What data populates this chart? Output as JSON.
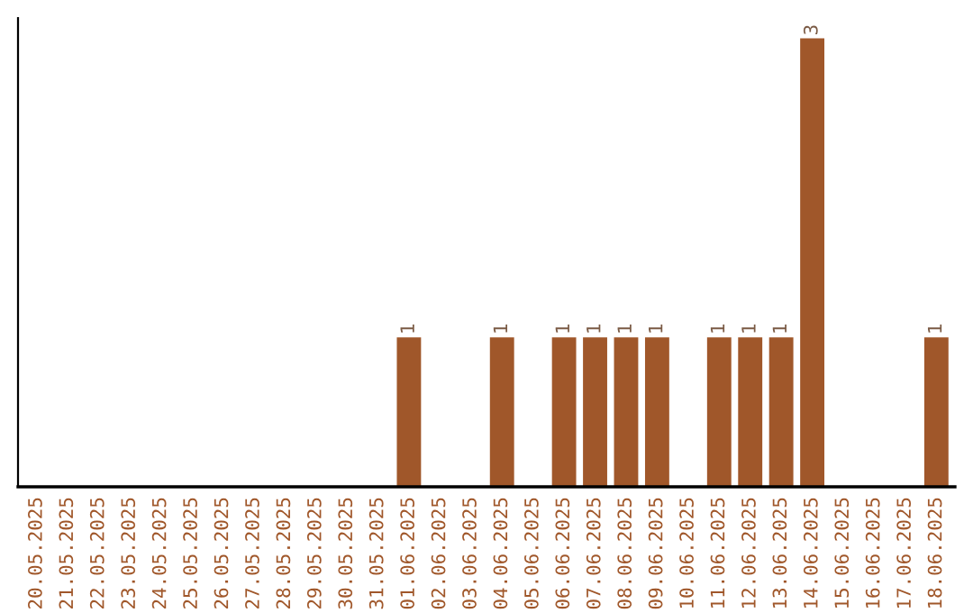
{
  "chart_data": {
    "type": "bar",
    "categories": [
      "20.05.2025",
      "21.05.2025",
      "22.05.2025",
      "23.05.2025",
      "24.05.2025",
      "25.05.2025",
      "26.05.2025",
      "27.05.2025",
      "28.05.2025",
      "29.05.2025",
      "30.05.2025",
      "31.05.2025",
      "01.06.2025",
      "02.06.2025",
      "03.06.2025",
      "04.06.2025",
      "05.06.2025",
      "06.06.2025",
      "07.06.2025",
      "08.06.2025",
      "09.06.2025",
      "10.06.2025",
      "11.06.2025",
      "12.06.2025",
      "13.06.2025",
      "14.06.2025",
      "15.06.2025",
      "16.06.2025",
      "17.06.2025",
      "18.06.2025"
    ],
    "values": [
      null,
      null,
      null,
      null,
      null,
      null,
      null,
      null,
      null,
      null,
      null,
      null,
      1,
      null,
      null,
      1,
      null,
      1,
      1,
      1,
      1,
      null,
      1,
      1,
      1,
      3,
      null,
      null,
      null,
      1
    ],
    "value_labels": [
      null,
      null,
      null,
      null,
      null,
      null,
      null,
      null,
      null,
      null,
      null,
      null,
      "1",
      null,
      null,
      "1",
      null,
      "1",
      "1",
      "1",
      "1",
      null,
      "1",
      "1",
      "1",
      "3",
      null,
      null,
      null,
      "1"
    ],
    "color": "#a0572a",
    "grid": false,
    "legend": false
  }
}
